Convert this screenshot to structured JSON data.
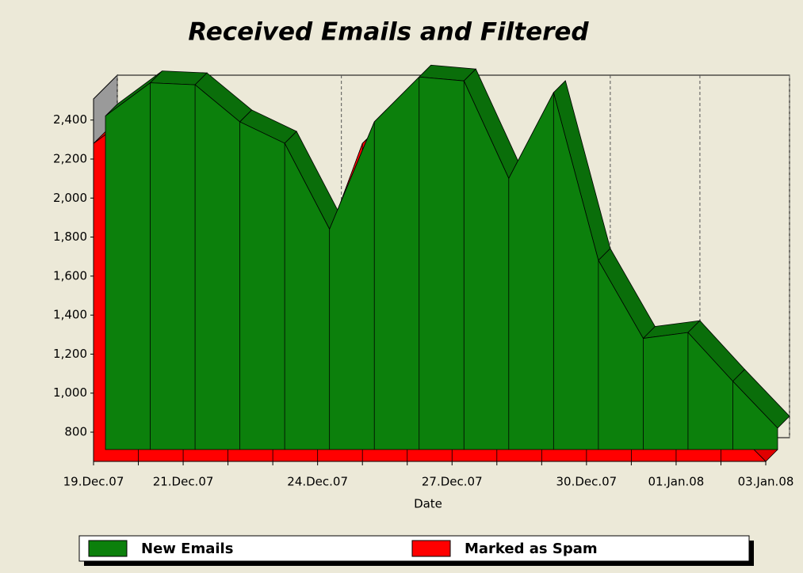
{
  "chart_data": {
    "type": "area3d",
    "title": "Received Emails and Filtered",
    "x_label": "Date",
    "categories": [
      "19.Dec.07",
      null,
      "21.Dec.07",
      null,
      null,
      "24.Dec.07",
      null,
      null,
      "27.Dec.07",
      null,
      null,
      "30.Dec.07",
      null,
      "01.Jan.08",
      null,
      "03.Jan.08"
    ],
    "series": [
      {
        "name": "New Emails",
        "color": "#0c800c",
        "values": [
          2360,
          2530,
          2520,
          2330,
          2220,
          1780,
          2330,
          2560,
          2540,
          2040,
          2480,
          1620,
          1220,
          1250,
          1000,
          760
        ]
      },
      {
        "name": "Marked as Spam",
        "color": "#ff0000",
        "values": [
          2280,
          2450,
          2430,
          2225,
          2120,
          1660,
          2280,
          2490,
          2450,
          1920,
          2390,
          1510,
          1125,
          1155,
          880,
          650
        ]
      }
    ],
    "ylim": [
      650,
      2630
    ],
    "yticks": [
      {
        "value": 800,
        "label": "800"
      },
      {
        "value": 1000,
        "label": "1,000"
      },
      {
        "value": 1200,
        "label": "1,200"
      },
      {
        "value": 1400,
        "label": "1,400"
      },
      {
        "value": 1600,
        "label": "1,600"
      },
      {
        "value": 1800,
        "label": "1,800"
      },
      {
        "value": 2000,
        "label": "2,000"
      },
      {
        "value": 2200,
        "label": "2,200"
      },
      {
        "value": 2400,
        "label": "2,400"
      }
    ],
    "grid": true,
    "legend": "bottom"
  }
}
